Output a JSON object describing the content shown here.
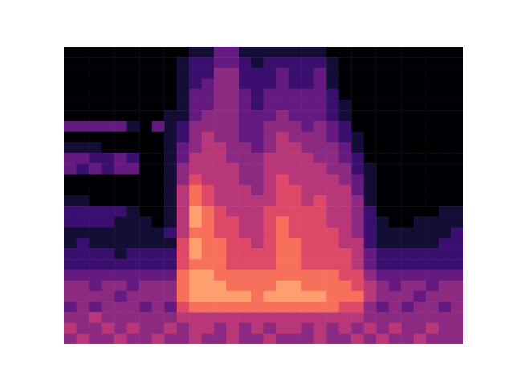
{
  "chart_data": {
    "type": "heatmap",
    "tick_labels": false,
    "zlim": [
      0,
      10
    ],
    "cells": [
      [
        0,
        0,
        0,
        0,
        0,
        0,
        0,
        0,
        0,
        0,
        1,
        1,
        3,
        3,
        1,
        1,
        1,
        1,
        1,
        1,
        1,
        0,
        0,
        0,
        0,
        0,
        0,
        0,
        0,
        0,
        0,
        0
      ],
      [
        0,
        0,
        0,
        0,
        0,
        0,
        0,
        0,
        0,
        1,
        2,
        2,
        3,
        3,
        2,
        1,
        2,
        2,
        2,
        2,
        2,
        1,
        0,
        0,
        0,
        0,
        0,
        0,
        0,
        0,
        0,
        0
      ],
      [
        0,
        0,
        0,
        0,
        0,
        0,
        0,
        0,
        0,
        1,
        2,
        2,
        4,
        4,
        2,
        2,
        2,
        3,
        2,
        2,
        3,
        1,
        0,
        0,
        0,
        0,
        0,
        0,
        0,
        0,
        0,
        0
      ],
      [
        0,
        0,
        0,
        0,
        0,
        0,
        0,
        0,
        0,
        1,
        2,
        3,
        4,
        4,
        2,
        2,
        2,
        3,
        2,
        2,
        3,
        1,
        0,
        0,
        0,
        0,
        0,
        0,
        0,
        0,
        0,
        0
      ],
      [
        0,
        0,
        0,
        0,
        0,
        0,
        0,
        0,
        0,
        1,
        3,
        3,
        4,
        4,
        3,
        2,
        3,
        3,
        3,
        3,
        3,
        2,
        0,
        0,
        0,
        0,
        0,
        0,
        0,
        0,
        0,
        0
      ],
      [
        0,
        0,
        0,
        0,
        0,
        0,
        0,
        0,
        0,
        1,
        3,
        3,
        4,
        4,
        3,
        2,
        3,
        3,
        3,
        3,
        3,
        2,
        1,
        0,
        0,
        0,
        0,
        0,
        0,
        0,
        0,
        0
      ],
      [
        0,
        0,
        0,
        0,
        0,
        0,
        0,
        0,
        1,
        1,
        3,
        4,
        4,
        4,
        3,
        3,
        3,
        4,
        3,
        3,
        3,
        2,
        1,
        0,
        0,
        0,
        0,
        0,
        0,
        0,
        0,
        0
      ],
      [
        3,
        3,
        3,
        3,
        3,
        1,
        0,
        3,
        1,
        2,
        4,
        4,
        4,
        4,
        3,
        3,
        4,
        4,
        4,
        3,
        4,
        3,
        2,
        0,
        0,
        0,
        0,
        0,
        0,
        0,
        0,
        0
      ],
      [
        0,
        0,
        0,
        0,
        0,
        0,
        0,
        0,
        1,
        2,
        4,
        5,
        4,
        4,
        3,
        3,
        4,
        5,
        4,
        4,
        4,
        3,
        2,
        1,
        0,
        0,
        0,
        0,
        0,
        0,
        0,
        0
      ],
      [
        1,
        1,
        1,
        0,
        0,
        0,
        0,
        0,
        1,
        3,
        4,
        5,
        5,
        4,
        4,
        3,
        4,
        5,
        5,
        4,
        4,
        4,
        3,
        1,
        0,
        0,
        0,
        0,
        0,
        0,
        0,
        0
      ],
      [
        3,
        3,
        2,
        2,
        3,
        2,
        0,
        0,
        1,
        3,
        5,
        5,
        5,
        4,
        4,
        4,
        5,
        5,
        5,
        5,
        4,
        4,
        3,
        2,
        0,
        0,
        0,
        0,
        0,
        0,
        0,
        0
      ],
      [
        3,
        2,
        3,
        2,
        3,
        3,
        0,
        0,
        1,
        4,
        5,
        5,
        5,
        5,
        4,
        4,
        5,
        5,
        5,
        5,
        5,
        4,
        4,
        2,
        1,
        0,
        0,
        0,
        0,
        0,
        0,
        0
      ],
      [
        0,
        0,
        0,
        0,
        0,
        0,
        0,
        0,
        1,
        4,
        6,
        5,
        5,
        5,
        4,
        4,
        5,
        6,
        5,
        5,
        5,
        5,
        4,
        3,
        1,
        0,
        0,
        0,
        0,
        0,
        0,
        0
      ],
      [
        0,
        0,
        0,
        0,
        0,
        0,
        0,
        0,
        1,
        5,
        7,
        6,
        5,
        5,
        5,
        4,
        5,
        6,
        6,
        5,
        5,
        5,
        5,
        3,
        1,
        0,
        0,
        0,
        0,
        0,
        0,
        0
      ],
      [
        1,
        1,
        0,
        0,
        0,
        0,
        0,
        0,
        1,
        5,
        7,
        6,
        5,
        5,
        5,
        5,
        5,
        6,
        6,
        5,
        6,
        5,
        5,
        4,
        1,
        0,
        0,
        0,
        0,
        0,
        0,
        0
      ],
      [
        2,
        2,
        2,
        2,
        2,
        1,
        0,
        0,
        1,
        5,
        8,
        7,
        6,
        5,
        5,
        5,
        6,
        6,
        6,
        6,
        6,
        5,
        5,
        4,
        2,
        0,
        0,
        0,
        0,
        0,
        1,
        1
      ],
      [
        2,
        2,
        2,
        2,
        1,
        1,
        1,
        0,
        1,
        5,
        8,
        7,
        6,
        6,
        5,
        5,
        6,
        7,
        6,
        6,
        6,
        5,
        5,
        4,
        2,
        1,
        0,
        0,
        1,
        1,
        1,
        1
      ],
      [
        1,
        1,
        1,
        1,
        1,
        1,
        1,
        1,
        2,
        5,
        7,
        7,
        6,
        6,
        5,
        5,
        6,
        7,
        6,
        6,
        6,
        6,
        5,
        4,
        2,
        1,
        1,
        1,
        1,
        1,
        1,
        2
      ],
      [
        1,
        2,
        1,
        1,
        1,
        1,
        1,
        1,
        1,
        6,
        8,
        7,
        7,
        6,
        6,
        5,
        6,
        7,
        7,
        6,
        6,
        6,
        5,
        5,
        2,
        1,
        1,
        1,
        1,
        1,
        2,
        2
      ],
      [
        2,
        2,
        2,
        2,
        1,
        2,
        2,
        2,
        2,
        6,
        8,
        7,
        7,
        6,
        6,
        6,
        6,
        7,
        7,
        6,
        6,
        6,
        6,
        5,
        3,
        2,
        2,
        2,
        2,
        2,
        2,
        2
      ],
      [
        2,
        2,
        2,
        2,
        2,
        2,
        2,
        2,
        2,
        6,
        7,
        7,
        7,
        6,
        6,
        6,
        6,
        7,
        7,
        6,
        6,
        6,
        6,
        5,
        3,
        2,
        2,
        2,
        2,
        2,
        2,
        2
      ],
      [
        3,
        3,
        3,
        3,
        3,
        3,
        3,
        3,
        3,
        7,
        8,
        8,
        7,
        7,
        7,
        7,
        7,
        7,
        7,
        7,
        7,
        7,
        6,
        6,
        4,
        3,
        3,
        3,
        3,
        3,
        3,
        3
      ],
      [
        4,
        4,
        3,
        4,
        4,
        3,
        4,
        4,
        4,
        7,
        8,
        8,
        8,
        7,
        7,
        7,
        7,
        8,
        8,
        7,
        7,
        7,
        7,
        6,
        5,
        4,
        3,
        4,
        4,
        3,
        4,
        4
      ],
      [
        4,
        4,
        4,
        4,
        3,
        4,
        4,
        4,
        4,
        7,
        8,
        8,
        8,
        8,
        8,
        7,
        8,
        8,
        8,
        8,
        8,
        7,
        7,
        7,
        5,
        4,
        4,
        4,
        3,
        4,
        4,
        4
      ],
      [
        3,
        4,
        3,
        4,
        4,
        4,
        3,
        4,
        3,
        6,
        7,
        7,
        7,
        7,
        7,
        7,
        7,
        7,
        7,
        7,
        7,
        7,
        6,
        6,
        4,
        3,
        4,
        3,
        4,
        4,
        3,
        4
      ],
      [
        4,
        4,
        5,
        4,
        4,
        4,
        4,
        4,
        4,
        5,
        5,
        5,
        5,
        5,
        5,
        5,
        5,
        5,
        5,
        5,
        5,
        5,
        5,
        5,
        4,
        4,
        4,
        4,
        4,
        4,
        4,
        4
      ],
      [
        5,
        4,
        4,
        5,
        4,
        5,
        4,
        4,
        5,
        4,
        5,
        5,
        4,
        5,
        4,
        5,
        4,
        5,
        5,
        4,
        5,
        4,
        5,
        4,
        5,
        4,
        5,
        4,
        4,
        5,
        4,
        4
      ],
      [
        4,
        5,
        4,
        4,
        5,
        4,
        4,
        5,
        4,
        4,
        5,
        4,
        4,
        5,
        4,
        4,
        5,
        4,
        4,
        4,
        5,
        4,
        4,
        5,
        4,
        5,
        4,
        4,
        5,
        4,
        4,
        4
      ]
    ]
  }
}
